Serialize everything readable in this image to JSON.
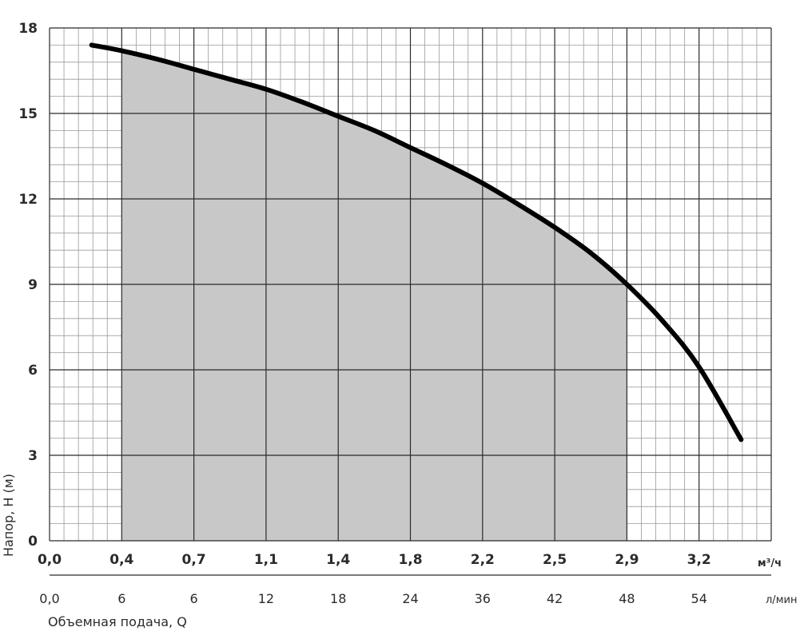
{
  "chart_data": {
    "type": "line",
    "ylabel": "Напор, Н (м)",
    "xlabel": "Объемная подача, Q",
    "ylim": [
      0,
      18
    ],
    "yticks": [
      "0",
      "3",
      "6",
      "9",
      "12",
      "15",
      "18"
    ],
    "x_axis_m3h": {
      "unit": "м³/ч",
      "ticks": [
        "0,0",
        "0,4",
        "0,7",
        "1,1",
        "1,4",
        "1,8",
        "2,2",
        "2,5",
        "2,9",
        "3,2"
      ]
    },
    "x_axis_lmin": {
      "unit": "л/мин",
      "ticks": [
        "0,0",
        "6",
        "6",
        "12",
        "18",
        "24",
        "36",
        "42",
        "48",
        "54"
      ]
    },
    "xlim": [
      0,
      60
    ],
    "grid": true,
    "series": [
      {
        "x": [
          3.5,
          6,
          9,
          12,
          15,
          18,
          21,
          24,
          27,
          30,
          33,
          36,
          39,
          42,
          45,
          48,
          51,
          54,
          57.5
        ],
        "y": [
          17.4,
          17.2,
          16.9,
          16.55,
          16.2,
          15.85,
          15.4,
          14.9,
          14.4,
          13.8,
          13.2,
          12.55,
          11.8,
          11.0,
          10.1,
          9.0,
          7.7,
          6.1,
          3.55
        ]
      }
    ],
    "shaded_range": [
      6,
      48
    ],
    "colors": {
      "curve": "#000000",
      "shade": "#c8c8c8",
      "grid_major": "#2a2a2a",
      "grid_minor": "#9a9a9a"
    }
  }
}
